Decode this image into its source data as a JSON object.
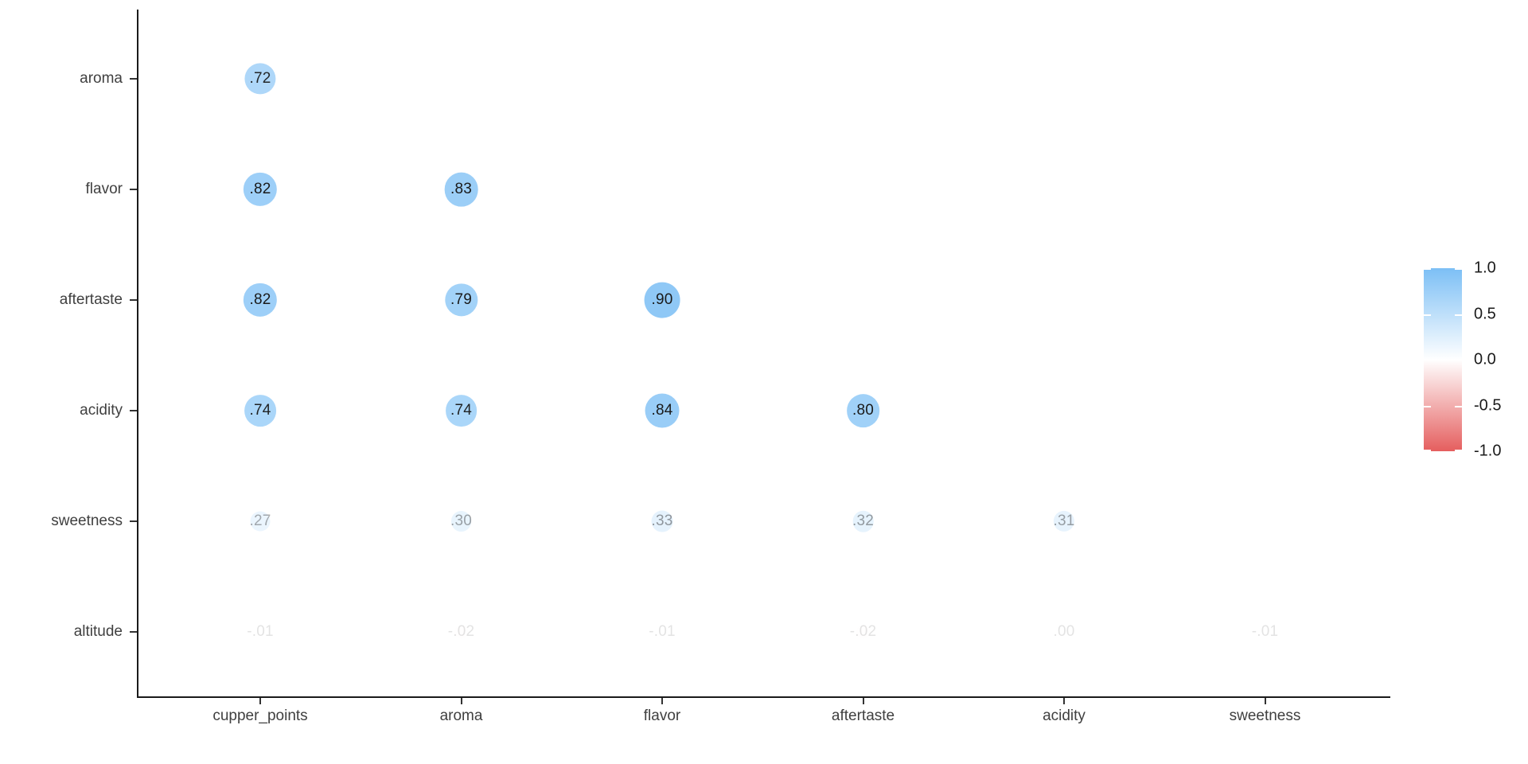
{
  "chart_data": {
    "type": "heatmap",
    "subtype": "correlation-dot-matrix",
    "title": "",
    "xlabel": "",
    "ylabel": "",
    "x_categories": [
      "cupper_points",
      "aroma",
      "flavor",
      "aftertaste",
      "acidity",
      "sweetness"
    ],
    "y_categories": [
      "aroma",
      "flavor",
      "aftertaste",
      "acidity",
      "sweetness",
      "altitude"
    ],
    "values": [
      [
        0.72,
        null,
        null,
        null,
        null,
        null
      ],
      [
        0.82,
        0.83,
        null,
        null,
        null,
        null
      ],
      [
        0.82,
        0.79,
        0.9,
        null,
        null,
        null
      ],
      [
        0.74,
        0.74,
        0.84,
        0.8,
        null,
        null
      ],
      [
        0.27,
        0.3,
        0.33,
        0.32,
        0.31,
        null
      ],
      [
        -0.01,
        -0.02,
        -0.01,
        -0.02,
        0.0,
        -0.01
      ]
    ],
    "labels": [
      [
        ".72",
        null,
        null,
        null,
        null,
        null
      ],
      [
        ".82",
        ".83",
        null,
        null,
        null,
        null
      ],
      [
        ".82",
        ".79",
        ".90",
        null,
        null,
        null
      ],
      [
        ".74",
        ".74",
        ".84",
        ".80",
        null,
        null
      ],
      [
        ".27",
        ".30",
        ".33",
        ".32",
        ".31",
        null
      ],
      [
        "-.01",
        "-.02",
        "-.01",
        "-.02",
        ".00",
        "-.01"
      ]
    ],
    "legend": {
      "position": "right",
      "tick_labels": [
        "1.0",
        "0.5",
        "0.0",
        "-0.5",
        "-1.0"
      ],
      "tick_values": [
        1.0,
        0.5,
        0.0,
        -0.5,
        -1.0
      ],
      "min": -1.0,
      "max": 1.0
    },
    "colors": {
      "positive_max": "#7cbff5",
      "mid": "#ffffff",
      "negative_max": "#e55e5e",
      "axis_line": "#1a1a1a",
      "axis_text": "#404040",
      "cell_text_base": "#1a1a1a"
    },
    "grid": "off",
    "background": "#ffffff"
  }
}
